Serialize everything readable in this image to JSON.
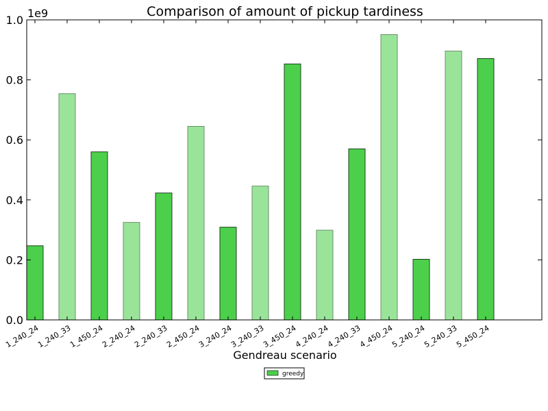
{
  "chart_data": {
    "type": "bar",
    "title": "Comparison of amount of pickup tardiness",
    "xlabel": "Gendreau scenario",
    "ylabel": "",
    "y_multiplier_label": "1e9",
    "ylim": [
      0,
      1.0
    ],
    "yticks": [
      "0.0",
      "0.2",
      "0.4",
      "0.6",
      "0.8",
      "1.0"
    ],
    "categories": [
      "1_240_24",
      "1_240_33",
      "1_450_24",
      "2_240_24",
      "2_240_33",
      "2_450_24",
      "3_240_24",
      "3_240_33",
      "3_450_24",
      "4_240_24",
      "4_240_33",
      "4_450_24",
      "5_240_24",
      "5_240_33",
      "5_450_24"
    ],
    "values": [
      0.247,
      0.754,
      0.56,
      0.325,
      0.423,
      0.645,
      0.309,
      0.446,
      0.853,
      0.299,
      0.57,
      0.951,
      0.202,
      0.896,
      0.871
    ],
    "bar_colors": [
      "#4cd04c",
      "#9ae49a",
      "#4cd04c",
      "#9ae49a",
      "#4cd04c",
      "#9ae49a",
      "#4cd04c",
      "#9ae49a",
      "#4cd04c",
      "#9ae49a",
      "#4cd04c",
      "#9ae49a",
      "#4cd04c",
      "#9ae49a",
      "#4cd04c"
    ],
    "series": [
      {
        "name": "greedy",
        "color": "#4cd04c"
      }
    ],
    "legend_position": "bottom-center",
    "grid": false
  }
}
